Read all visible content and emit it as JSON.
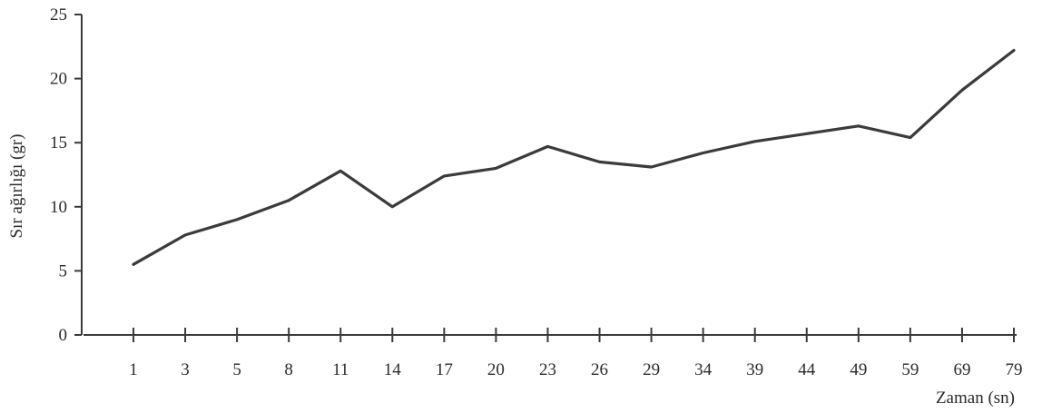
{
  "chart_data": {
    "type": "line",
    "categories": [
      "1",
      "3",
      "5",
      "8",
      "11",
      "14",
      "17",
      "20",
      "23",
      "26",
      "29",
      "34",
      "39",
      "44",
      "49",
      "59",
      "69",
      "79"
    ],
    "series": [
      {
        "values": [
          5.5,
          7.8,
          9.0,
          10.5,
          12.8,
          10.0,
          12.4,
          13.0,
          14.7,
          13.5,
          13.1,
          14.2,
          15.1,
          15.7,
          16.3,
          15.4,
          19.1,
          22.2
        ]
      }
    ],
    "title": "",
    "xlabel": "Zaman (sn)",
    "ylabel": "Sır ağırlığı (gr)",
    "ylim": [
      0,
      25
    ],
    "yticks": [
      "0",
      "5",
      "10",
      "15",
      "20",
      "25"
    ],
    "grid": false,
    "line_color": "#3b3b3b",
    "axis_color": "#3a3a3a"
  }
}
